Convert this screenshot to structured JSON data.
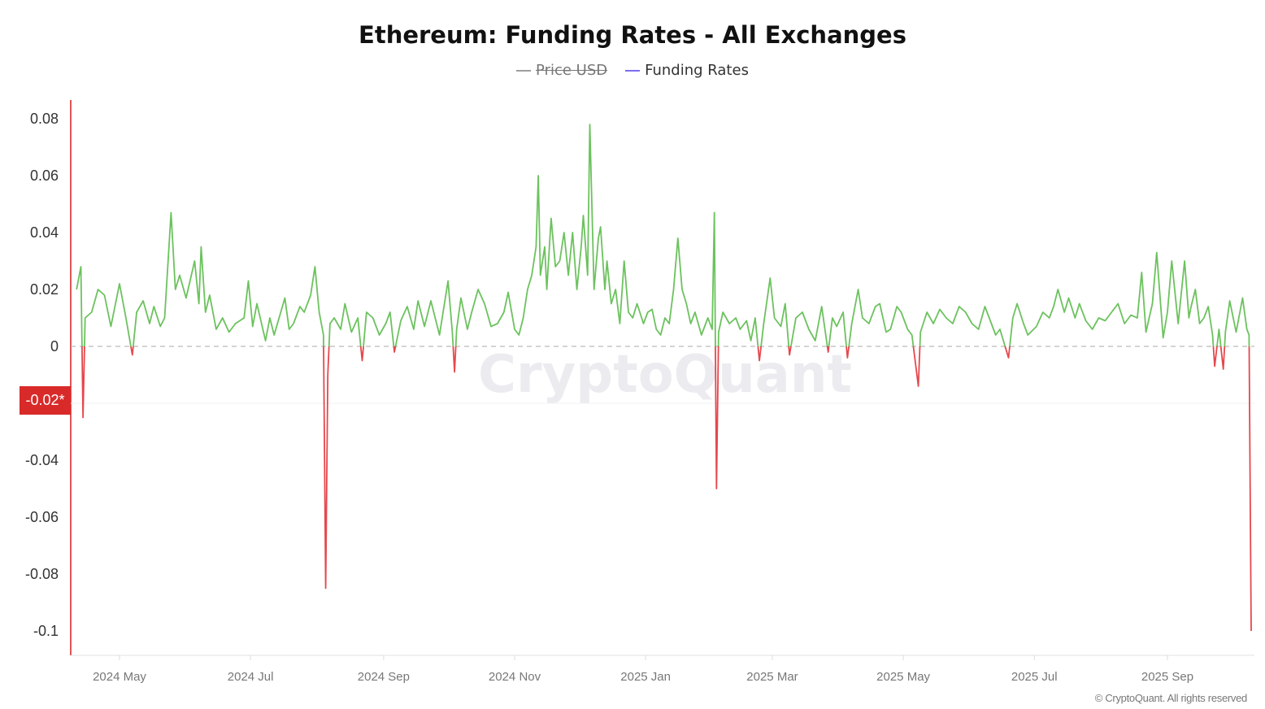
{
  "chart_data": {
    "type": "line",
    "title": "Ethereum: Funding Rates - All Exchanges",
    "legend": [
      {
        "name": "Price USD",
        "color": "#9e9e9e",
        "enabled": false
      },
      {
        "name": "Funding Rates",
        "color": "#7b6cf0",
        "enabled": true
      }
    ],
    "positive_color": "#6cc25e",
    "negative_color": "#e5484d",
    "ylim": [
      -0.11,
      0.085
    ],
    "yticks": [
      "0.08",
      "0.06",
      "0.04",
      "0.02",
      "0",
      "-0.02*",
      "-0.04",
      "-0.06",
      "-0.08",
      "-0.1"
    ],
    "ytick_values": [
      0.08,
      0.06,
      0.04,
      0.02,
      0,
      -0.02,
      -0.04,
      -0.06,
      -0.08,
      -0.1
    ],
    "highlight_label": "-0.02*",
    "xlim": [
      "2024-04-10",
      "2025-10-11"
    ],
    "xticks": [
      {
        "label": "2024 May",
        "date": "2024-05-01"
      },
      {
        "label": "2024 Jul",
        "date": "2024-07-01"
      },
      {
        "label": "2024 Sep",
        "date": "2024-09-01"
      },
      {
        "label": "2024 Nov",
        "date": "2024-11-01"
      },
      {
        "label": "2025 Jan",
        "date": "2025-01-01"
      },
      {
        "label": "2025 Mar",
        "date": "2025-03-01"
      },
      {
        "label": "2025 May",
        "date": "2025-05-01"
      },
      {
        "label": "2025 Jul",
        "date": "2025-07-01"
      },
      {
        "label": "2025 Sep",
        "date": "2025-09-01"
      }
    ],
    "series": [
      {
        "name": "Funding Rates",
        "points": [
          [
            "2024-04-11",
            0.02
          ],
          [
            "2024-04-13",
            0.028
          ],
          [
            "2024-04-14",
            -0.025
          ],
          [
            "2024-04-15",
            0.01
          ],
          [
            "2024-04-18",
            0.012
          ],
          [
            "2024-04-21",
            0.02
          ],
          [
            "2024-04-24",
            0.018
          ],
          [
            "2024-04-27",
            0.007
          ],
          [
            "2024-05-01",
            0.022
          ],
          [
            "2024-05-04",
            0.01
          ],
          [
            "2024-05-07",
            -0.003
          ],
          [
            "2024-05-09",
            0.012
          ],
          [
            "2024-05-12",
            0.016
          ],
          [
            "2024-05-15",
            0.008
          ],
          [
            "2024-05-17",
            0.014
          ],
          [
            "2024-05-20",
            0.007
          ],
          [
            "2024-05-22",
            0.01
          ],
          [
            "2024-05-25",
            0.047
          ],
          [
            "2024-05-27",
            0.02
          ],
          [
            "2024-05-29",
            0.025
          ],
          [
            "2024-06-01",
            0.017
          ],
          [
            "2024-06-05",
            0.03
          ],
          [
            "2024-06-07",
            0.015
          ],
          [
            "2024-06-08",
            0.035
          ],
          [
            "2024-06-10",
            0.012
          ],
          [
            "2024-06-12",
            0.018
          ],
          [
            "2024-06-15",
            0.006
          ],
          [
            "2024-06-18",
            0.01
          ],
          [
            "2024-06-21",
            0.005
          ],
          [
            "2024-06-24",
            0.008
          ],
          [
            "2024-06-28",
            0.01
          ],
          [
            "2024-06-30",
            0.023
          ],
          [
            "2024-07-02",
            0.007
          ],
          [
            "2024-07-04",
            0.015
          ],
          [
            "2024-07-08",
            0.002
          ],
          [
            "2024-07-10",
            0.01
          ],
          [
            "2024-07-12",
            0.004
          ],
          [
            "2024-07-17",
            0.017
          ],
          [
            "2024-07-19",
            0.006
          ],
          [
            "2024-07-21",
            0.008
          ],
          [
            "2024-07-24",
            0.014
          ],
          [
            "2024-07-26",
            0.012
          ],
          [
            "2024-07-29",
            0.018
          ],
          [
            "2024-07-31",
            0.028
          ],
          [
            "2024-08-02",
            0.012
          ],
          [
            "2024-08-04",
            0.004
          ],
          [
            "2024-08-05",
            -0.085
          ],
          [
            "2024-08-06",
            -0.01
          ],
          [
            "2024-08-07",
            0.008
          ],
          [
            "2024-08-09",
            0.01
          ],
          [
            "2024-08-12",
            0.006
          ],
          [
            "2024-08-14",
            0.015
          ],
          [
            "2024-08-17",
            0.005
          ],
          [
            "2024-08-20",
            0.01
          ],
          [
            "2024-08-22",
            -0.005
          ],
          [
            "2024-08-24",
            0.012
          ],
          [
            "2024-08-27",
            0.01
          ],
          [
            "2024-08-30",
            0.004
          ],
          [
            "2024-09-02",
            0.008
          ],
          [
            "2024-09-04",
            0.012
          ],
          [
            "2024-09-06",
            -0.002
          ],
          [
            "2024-09-09",
            0.009
          ],
          [
            "2024-09-12",
            0.014
          ],
          [
            "2024-09-15",
            0.006
          ],
          [
            "2024-09-17",
            0.016
          ],
          [
            "2024-09-20",
            0.007
          ],
          [
            "2024-09-23",
            0.016
          ],
          [
            "2024-09-25",
            0.01
          ],
          [
            "2024-09-27",
            0.004
          ],
          [
            "2024-10-01",
            0.023
          ],
          [
            "2024-10-03",
            0.005
          ],
          [
            "2024-10-04",
            -0.009
          ],
          [
            "2024-10-05",
            0.006
          ],
          [
            "2024-10-07",
            0.017
          ],
          [
            "2024-10-10",
            0.006
          ],
          [
            "2024-10-12",
            0.012
          ],
          [
            "2024-10-15",
            0.02
          ],
          [
            "2024-10-18",
            0.015
          ],
          [
            "2024-10-21",
            0.007
          ],
          [
            "2024-10-24",
            0.008
          ],
          [
            "2024-10-27",
            0.012
          ],
          [
            "2024-10-29",
            0.019
          ],
          [
            "2024-11-01",
            0.006
          ],
          [
            "2024-11-03",
            0.004
          ],
          [
            "2024-11-05",
            0.01
          ],
          [
            "2024-11-07",
            0.02
          ],
          [
            "2024-11-09",
            0.025
          ],
          [
            "2024-11-11",
            0.035
          ],
          [
            "2024-11-12",
            0.06
          ],
          [
            "2024-11-13",
            0.025
          ],
          [
            "2024-11-15",
            0.035
          ],
          [
            "2024-11-16",
            0.02
          ],
          [
            "2024-11-18",
            0.045
          ],
          [
            "2024-11-20",
            0.028
          ],
          [
            "2024-11-22",
            0.03
          ],
          [
            "2024-11-24",
            0.04
          ],
          [
            "2024-11-26",
            0.025
          ],
          [
            "2024-11-28",
            0.04
          ],
          [
            "2024-11-30",
            0.02
          ],
          [
            "2024-12-02",
            0.035
          ],
          [
            "2024-12-03",
            0.046
          ],
          [
            "2024-12-05",
            0.025
          ],
          [
            "2024-12-06",
            0.078
          ],
          [
            "2024-12-08",
            0.02
          ],
          [
            "2024-12-10",
            0.038
          ],
          [
            "2024-12-11",
            0.042
          ],
          [
            "2024-12-13",
            0.02
          ],
          [
            "2024-12-14",
            0.03
          ],
          [
            "2024-12-16",
            0.015
          ],
          [
            "2024-12-18",
            0.02
          ],
          [
            "2024-12-20",
            0.008
          ],
          [
            "2024-12-22",
            0.03
          ],
          [
            "2024-12-24",
            0.012
          ],
          [
            "2024-12-26",
            0.01
          ],
          [
            "2024-12-28",
            0.015
          ],
          [
            "2024-12-31",
            0.008
          ],
          [
            "2025-01-02",
            0.012
          ],
          [
            "2025-01-04",
            0.013
          ],
          [
            "2025-01-06",
            0.006
          ],
          [
            "2025-01-08",
            0.004
          ],
          [
            "2025-01-10",
            0.01
          ],
          [
            "2025-01-12",
            0.008
          ],
          [
            "2025-01-14",
            0.02
          ],
          [
            "2025-01-16",
            0.038
          ],
          [
            "2025-01-18",
            0.02
          ],
          [
            "2025-01-20",
            0.015
          ],
          [
            "2025-01-22",
            0.008
          ],
          [
            "2025-01-24",
            0.012
          ],
          [
            "2025-01-27",
            0.004
          ],
          [
            "2025-01-30",
            0.01
          ],
          [
            "2025-02-01",
            0.006
          ],
          [
            "2025-02-02",
            0.047
          ],
          [
            "2025-02-03",
            -0.05
          ],
          [
            "2025-02-04",
            0.005
          ],
          [
            "2025-02-06",
            0.012
          ],
          [
            "2025-02-09",
            0.008
          ],
          [
            "2025-02-12",
            0.01
          ],
          [
            "2025-02-14",
            0.006
          ],
          [
            "2025-02-17",
            0.009
          ],
          [
            "2025-02-19",
            0.002
          ],
          [
            "2025-02-21",
            0.01
          ],
          [
            "2025-02-23",
            -0.005
          ],
          [
            "2025-02-25",
            0.008
          ],
          [
            "2025-02-28",
            0.024
          ],
          [
            "2025-03-02",
            0.01
          ],
          [
            "2025-03-05",
            0.007
          ],
          [
            "2025-03-07",
            0.015
          ],
          [
            "2025-03-09",
            -0.003
          ],
          [
            "2025-03-12",
            0.01
          ],
          [
            "2025-03-15",
            0.012
          ],
          [
            "2025-03-18",
            0.006
          ],
          [
            "2025-03-21",
            0.002
          ],
          [
            "2025-03-24",
            0.014
          ],
          [
            "2025-03-27",
            -0.002
          ],
          [
            "2025-03-29",
            0.01
          ],
          [
            "2025-03-31",
            0.007
          ],
          [
            "2025-04-03",
            0.012
          ],
          [
            "2025-04-05",
            -0.004
          ],
          [
            "2025-04-07",
            0.008
          ],
          [
            "2025-04-10",
            0.02
          ],
          [
            "2025-04-12",
            0.01
          ],
          [
            "2025-04-15",
            0.008
          ],
          [
            "2025-04-18",
            0.014
          ],
          [
            "2025-04-20",
            0.015
          ],
          [
            "2025-04-23",
            0.005
          ],
          [
            "2025-04-25",
            0.006
          ],
          [
            "2025-04-28",
            0.014
          ],
          [
            "2025-04-30",
            0.012
          ],
          [
            "2025-05-03",
            0.006
          ],
          [
            "2025-05-05",
            0.004
          ],
          [
            "2025-05-08",
            -0.014
          ],
          [
            "2025-05-09",
            0.005
          ],
          [
            "2025-05-12",
            0.012
          ],
          [
            "2025-05-15",
            0.008
          ],
          [
            "2025-05-18",
            0.013
          ],
          [
            "2025-05-21",
            0.01
          ],
          [
            "2025-05-24",
            0.008
          ],
          [
            "2025-05-27",
            0.014
          ],
          [
            "2025-05-30",
            0.012
          ],
          [
            "2025-06-02",
            0.008
          ],
          [
            "2025-06-05",
            0.006
          ],
          [
            "2025-06-08",
            0.014
          ],
          [
            "2025-06-10",
            0.01
          ],
          [
            "2025-06-13",
            0.004
          ],
          [
            "2025-06-15",
            0.006
          ],
          [
            "2025-06-19",
            -0.004
          ],
          [
            "2025-06-21",
            0.01
          ],
          [
            "2025-06-23",
            0.015
          ],
          [
            "2025-06-26",
            0.008
          ],
          [
            "2025-06-28",
            0.004
          ],
          [
            "2025-07-02",
            0.007
          ],
          [
            "2025-07-05",
            0.012
          ],
          [
            "2025-07-08",
            0.01
          ],
          [
            "2025-07-10",
            0.014
          ],
          [
            "2025-07-12",
            0.02
          ],
          [
            "2025-07-15",
            0.012
          ],
          [
            "2025-07-17",
            0.017
          ],
          [
            "2025-07-20",
            0.01
          ],
          [
            "2025-07-22",
            0.015
          ],
          [
            "2025-07-25",
            0.009
          ],
          [
            "2025-07-28",
            0.006
          ],
          [
            "2025-07-31",
            0.01
          ],
          [
            "2025-08-03",
            0.009
          ],
          [
            "2025-08-06",
            0.012
          ],
          [
            "2025-08-09",
            0.015
          ],
          [
            "2025-08-12",
            0.008
          ],
          [
            "2025-08-15",
            0.011
          ],
          [
            "2025-08-18",
            0.01
          ],
          [
            "2025-08-20",
            0.026
          ],
          [
            "2025-08-22",
            0.005
          ],
          [
            "2025-08-25",
            0.015
          ],
          [
            "2025-08-27",
            0.033
          ],
          [
            "2025-08-30",
            0.003
          ],
          [
            "2025-09-01",
            0.012
          ],
          [
            "2025-09-03",
            0.03
          ],
          [
            "2025-09-06",
            0.008
          ],
          [
            "2025-09-09",
            0.03
          ],
          [
            "2025-09-11",
            0.01
          ],
          [
            "2025-09-12",
            0.014
          ],
          [
            "2025-09-14",
            0.02
          ],
          [
            "2025-09-16",
            0.008
          ],
          [
            "2025-09-18",
            0.01
          ],
          [
            "2025-09-20",
            0.014
          ],
          [
            "2025-09-22",
            0.004
          ],
          [
            "2025-09-23",
            -0.007
          ],
          [
            "2025-09-25",
            0.006
          ],
          [
            "2025-09-27",
            -0.008
          ],
          [
            "2025-09-28",
            0.005
          ],
          [
            "2025-09-30",
            0.016
          ],
          [
            "2025-10-03",
            0.005
          ],
          [
            "2025-10-06",
            0.017
          ],
          [
            "2025-10-08",
            0.006
          ],
          [
            "2025-10-09",
            0.004
          ],
          [
            "2025-10-10",
            -0.1
          ]
        ]
      }
    ]
  },
  "watermark": "CryptoQuant",
  "copyright": "© CryptoQuant. All rights reserved"
}
